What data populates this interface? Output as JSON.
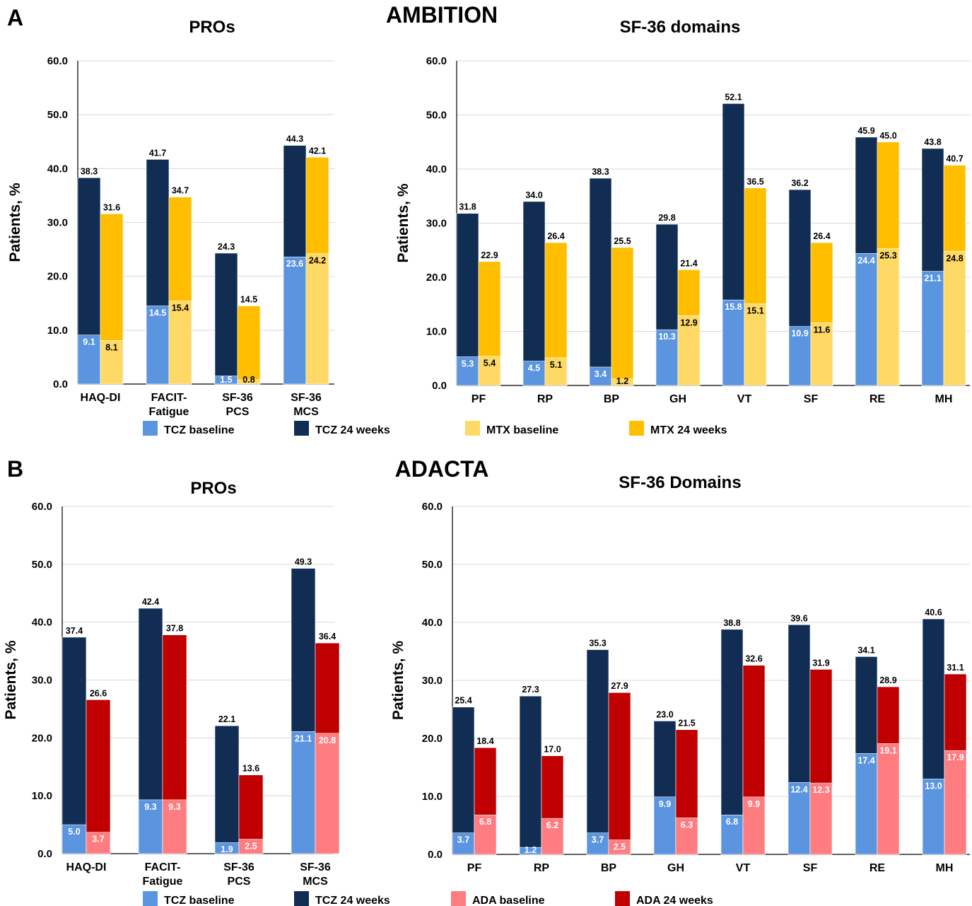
{
  "colors": {
    "tcz_baseline": "#5b95e0",
    "tcz_24": "#112d54",
    "mtx_baseline": "#ffd966",
    "mtx_24": "#ffbf00",
    "ada_baseline": "#ff7c80",
    "ada_24": "#c00000"
  },
  "panelA": {
    "letter": "A",
    "study": "AMBITION"
  },
  "panelB": {
    "letter": "B",
    "study": "ADACTA"
  },
  "legendA": [
    {
      "label": "TCZ baseline",
      "color_key": "tcz_baseline"
    },
    {
      "label": "TCZ 24 weeks",
      "color_key": "tcz_24"
    },
    {
      "label": "MTX baseline",
      "color_key": "mtx_baseline"
    },
    {
      "label": "MTX 24 weeks",
      "color_key": "mtx_24"
    }
  ],
  "legendB": [
    {
      "label": "TCZ baseline",
      "color_key": "tcz_baseline"
    },
    {
      "label": "TCZ 24 weeks",
      "color_key": "tcz_24"
    },
    {
      "label": "ADA baseline",
      "color_key": "ada_baseline"
    },
    {
      "label": "ADA 24 weeks",
      "color_key": "ada_24"
    }
  ],
  "chart_data": [
    {
      "id": "a-pros",
      "type": "bar",
      "title": "PROs",
      "ylabel": "Patients, %",
      "ylim": [
        0,
        60
      ],
      "yticks": [
        "0.0",
        "10.0",
        "20.0",
        "30.0",
        "40.0",
        "50.0",
        "60.0"
      ],
      "categories": [
        [
          "HAQ-DI"
        ],
        [
          "FACIT-",
          "Fatigue"
        ],
        [
          "SF-36",
          "PCS"
        ],
        [
          "SF-36",
          "MCS"
        ]
      ],
      "groups": [
        {
          "baseline_name": "TCZ baseline",
          "week24_name": "TCZ 24 weeks",
          "baseline": [
            9.1,
            14.5,
            1.5,
            23.6
          ],
          "week24": [
            38.3,
            41.7,
            24.3,
            44.3
          ],
          "baseline_color": "tcz_baseline",
          "week24_color": "tcz_24"
        },
        {
          "baseline_name": "MTX baseline",
          "week24_name": "MTX 24 weeks",
          "baseline": [
            8.1,
            15.4,
            0.8,
            24.2
          ],
          "week24": [
            31.6,
            34.7,
            14.5,
            42.1
          ],
          "baseline_color": "mtx_baseline",
          "week24_color": "mtx_24"
        }
      ]
    },
    {
      "id": "a-sf36",
      "type": "bar",
      "title": "SF-36 domains",
      "ylabel": "Patients, %",
      "ylim": [
        0,
        60
      ],
      "yticks": [
        "0.0",
        "10.0",
        "20.0",
        "30.0",
        "40.0",
        "50.0",
        "60.0"
      ],
      "categories": [
        [
          "PF"
        ],
        [
          "RP"
        ],
        [
          "BP"
        ],
        [
          "GH"
        ],
        [
          "VT"
        ],
        [
          "SF"
        ],
        [
          "RE"
        ],
        [
          "MH"
        ]
      ],
      "groups": [
        {
          "baseline_name": "TCZ baseline",
          "week24_name": "TCZ 24 weeks",
          "baseline": [
            5.3,
            4.5,
            3.4,
            10.3,
            15.8,
            10.9,
            24.4,
            21.1
          ],
          "week24": [
            31.8,
            34.0,
            38.3,
            29.8,
            52.1,
            36.2,
            45.9,
            43.8
          ],
          "baseline_color": "tcz_baseline",
          "week24_color": "tcz_24"
        },
        {
          "baseline_name": "MTX baseline",
          "week24_name": "MTX 24 weeks",
          "baseline": [
            5.4,
            5.1,
            1.2,
            12.9,
            15.1,
            11.6,
            25.3,
            24.8
          ],
          "week24": [
            22.9,
            26.4,
            25.5,
            21.4,
            36.5,
            26.4,
            45.0,
            40.7
          ],
          "baseline_color": "mtx_baseline",
          "week24_color": "mtx_24"
        }
      ]
    },
    {
      "id": "b-pros",
      "type": "bar",
      "title": "PROs",
      "ylabel": "Patients, %",
      "ylim": [
        0,
        60
      ],
      "yticks": [
        "0.0",
        "10.0",
        "20.0",
        "30.0",
        "40.0",
        "50.0",
        "60.0"
      ],
      "categories": [
        [
          "HAQ-DI"
        ],
        [
          "FACIT-",
          "Fatigue"
        ],
        [
          "SF-36",
          "PCS"
        ],
        [
          "SF-36",
          "MCS"
        ]
      ],
      "groups": [
        {
          "baseline_name": "TCZ baseline",
          "week24_name": "TCZ 24 weeks",
          "baseline": [
            5.0,
            9.3,
            1.9,
            21.1
          ],
          "week24": [
            37.4,
            42.4,
            22.1,
            49.3
          ],
          "baseline_color": "tcz_baseline",
          "week24_color": "tcz_24"
        },
        {
          "baseline_name": "ADA baseline",
          "week24_name": "ADA 24 weeks",
          "baseline": [
            3.7,
            9.3,
            2.5,
            20.8
          ],
          "week24": [
            26.6,
            37.8,
            13.6,
            36.4
          ],
          "baseline_color": "ada_baseline",
          "week24_color": "ada_24"
        }
      ]
    },
    {
      "id": "b-sf36",
      "type": "bar",
      "title": "SF-36 Domains",
      "ylabel": "Patients, %",
      "ylim": [
        0,
        60
      ],
      "yticks": [
        "0.0",
        "10.0",
        "20.0",
        "30.0",
        "40.0",
        "50.0",
        "60.0"
      ],
      "categories": [
        [
          "PF"
        ],
        [
          "RP"
        ],
        [
          "BP"
        ],
        [
          "GH"
        ],
        [
          "VT"
        ],
        [
          "SF"
        ],
        [
          "RE"
        ],
        [
          "MH"
        ]
      ],
      "groups": [
        {
          "baseline_name": "TCZ baseline",
          "week24_name": "TCZ 24 weeks",
          "baseline": [
            3.7,
            1.2,
            3.7,
            9.9,
            6.8,
            12.4,
            17.4,
            13.0
          ],
          "week24": [
            25.4,
            27.3,
            35.3,
            23.0,
            38.8,
            39.6,
            34.1,
            40.6
          ],
          "baseline_color": "tcz_baseline",
          "week24_color": "tcz_24"
        },
        {
          "baseline_name": "ADA baseline",
          "week24_name": "ADA 24 weeks",
          "baseline": [
            6.8,
            6.2,
            2.5,
            6.3,
            9.9,
            12.3,
            19.1,
            17.9
          ],
          "week24": [
            18.4,
            17.0,
            27.9,
            21.5,
            32.6,
            31.9,
            28.9,
            31.1
          ],
          "baseline_color": "ada_baseline",
          "week24_color": "ada_24"
        }
      ]
    }
  ]
}
